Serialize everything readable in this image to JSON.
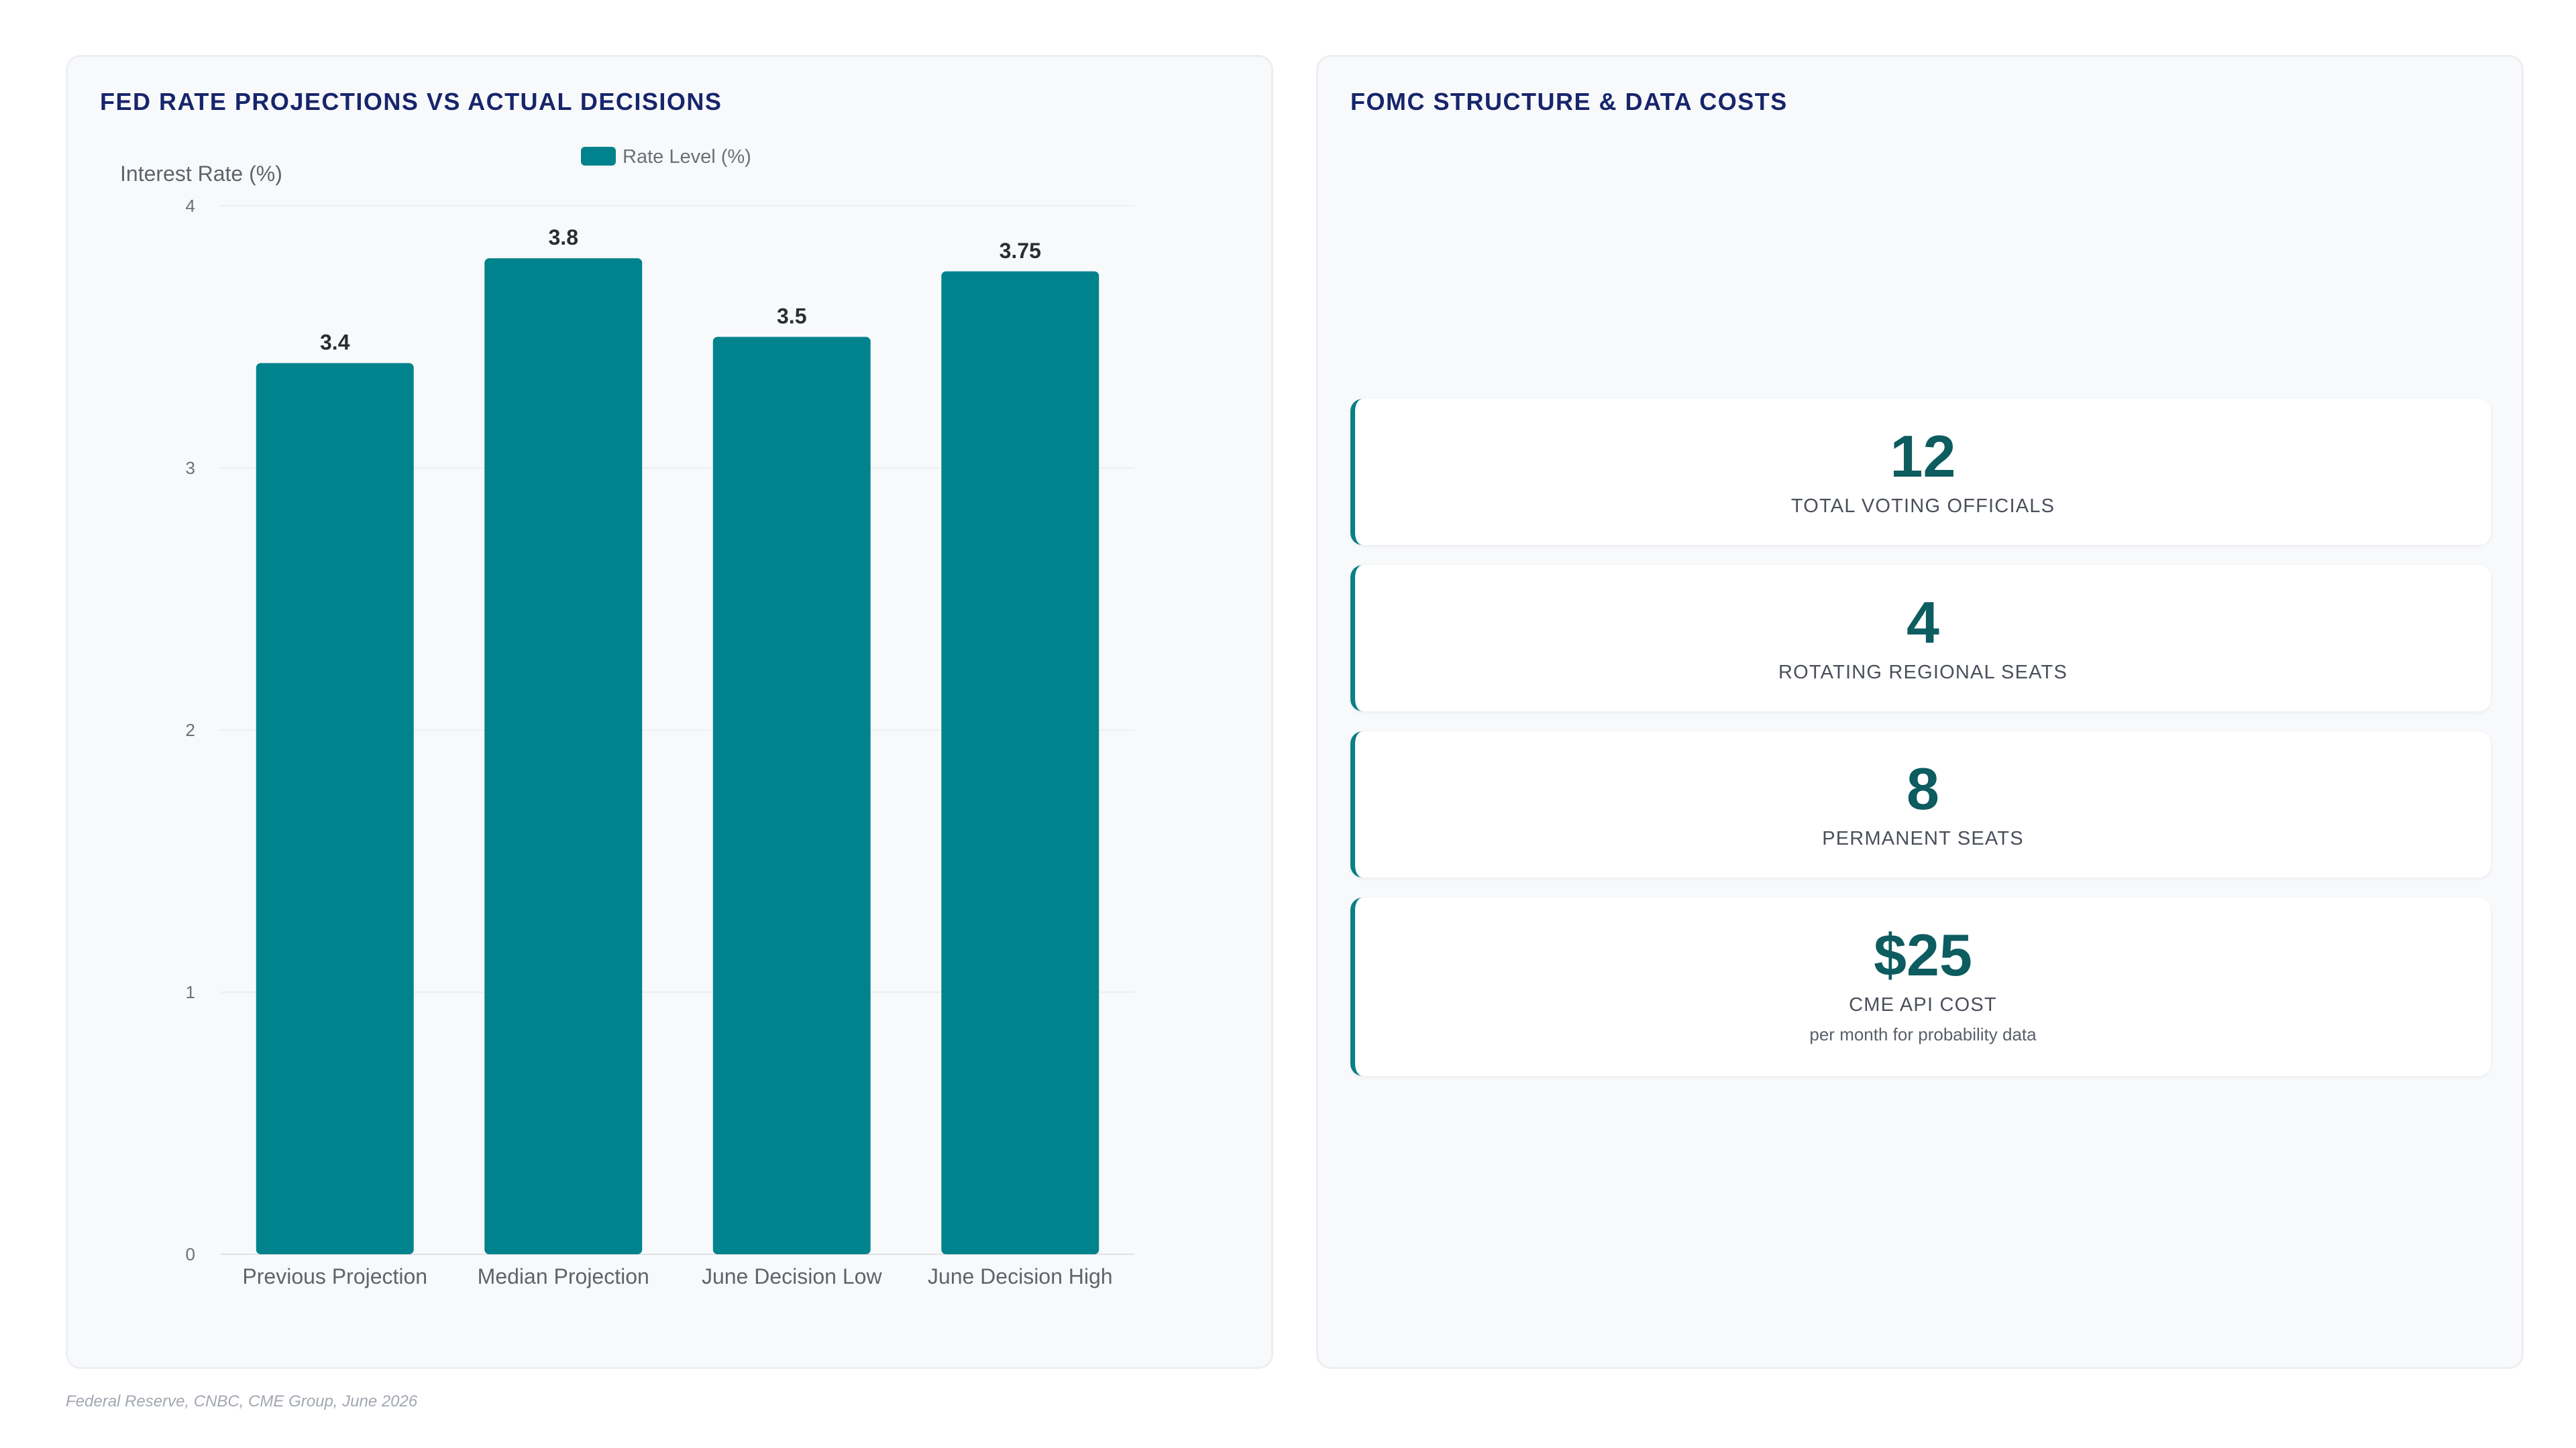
{
  "left_panel": {
    "title": "FED RATE PROJECTIONS VS ACTUAL DECISIONS"
  },
  "right_panel": {
    "title": "FOMC STRUCTURE & DATA COSTS",
    "kpis": [
      {
        "value": "12",
        "label": "TOTAL VOTING OFFICIALS",
        "note": ""
      },
      {
        "value": "4",
        "label": "ROTATING REGIONAL SEATS",
        "note": ""
      },
      {
        "value": "8",
        "label": "PERMANENT SEATS",
        "note": ""
      },
      {
        "value": "$25",
        "label": "CME API COST",
        "note": "per month for probability data"
      }
    ]
  },
  "source": "Federal Reserve, CNBC, CME Group, June 2026",
  "colors": {
    "bar": "#00838c",
    "title": "#17256b",
    "kpi_value": "#0d5c5f",
    "kpi_accent": "#0a7f86"
  },
  "chart_data": {
    "type": "bar",
    "title": "FED RATE PROJECTIONS VS ACTUAL DECISIONS",
    "categories": [
      "Previous Projection",
      "Median Projection",
      "June Decision Low",
      "June Decision High"
    ],
    "series": [
      {
        "name": "Rate Level (%)",
        "values": [
          3.4,
          3.8,
          3.5,
          3.75
        ]
      }
    ],
    "data_labels": [
      "3.4",
      "3.8",
      "3.5",
      "3.75"
    ],
    "xlabel": "",
    "ylabel": "Interest Rate (%)",
    "ylim": [
      0,
      4
    ],
    "yticks": [
      0,
      1,
      2,
      3,
      4
    ],
    "grid": true,
    "legend": "top-center"
  }
}
